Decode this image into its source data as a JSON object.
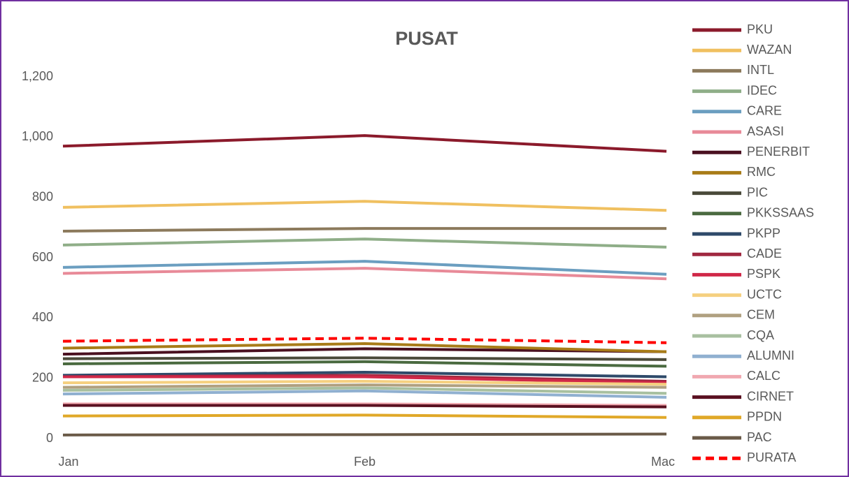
{
  "chart_data": {
    "type": "line",
    "title": "PUSAT",
    "categories": [
      "Jan",
      "Feb",
      "Mac"
    ],
    "ylim": [
      0,
      1200
    ],
    "yticks": [
      0,
      200,
      400,
      600,
      800,
      {
        "value": 1000,
        "label": "1,000"
      },
      {
        "value": 1200,
        "label": "1,200"
      }
    ],
    "grid": false,
    "legend": "right",
    "series": [
      {
        "name": "PKU",
        "color": "#8b1a2b",
        "values": [
          970,
          1005,
          953
        ]
      },
      {
        "name": "WAZAN",
        "color": "#f0c060",
        "values": [
          767,
          787,
          757
        ]
      },
      {
        "name": "INTL",
        "color": "#8c7a5c",
        "values": [
          688,
          697,
          697
        ]
      },
      {
        "name": "IDEC",
        "color": "#8fae88",
        "values": [
          642,
          662,
          635
        ]
      },
      {
        "name": "CARE",
        "color": "#6b9ec0",
        "values": [
          568,
          588,
          545
        ]
      },
      {
        "name": "ASASI",
        "color": "#e88a98",
        "values": [
          548,
          565,
          530
        ]
      },
      {
        "name": "PENERBIT",
        "color": "#4a1020",
        "values": [
          280,
          298,
          288
        ]
      },
      {
        "name": "RMC",
        "color": "#a87c18",
        "values": [
          300,
          315,
          288
        ]
      },
      {
        "name": "PIC",
        "color": "#4a4a3a",
        "values": [
          265,
          268,
          262
        ]
      },
      {
        "name": "PKKSSAAS",
        "color": "#4a6a40",
        "values": [
          248,
          255,
          240
        ]
      },
      {
        "name": "PKPP",
        "color": "#2e4a6a",
        "values": [
          210,
          220,
          205
        ]
      },
      {
        "name": "CADE",
        "color": "#a02840",
        "values": [
          205,
          210,
          190
        ]
      },
      {
        "name": "PSPK",
        "color": "#d02848",
        "values": [
          205,
          205,
          185
        ]
      },
      {
        "name": "UCTC",
        "color": "#f5d080",
        "values": [
          185,
          190,
          180
        ]
      },
      {
        "name": "CEM",
        "color": "#b0a080",
        "values": [
          170,
          178,
          170
        ]
      },
      {
        "name": "CQA",
        "color": "#a8c0a0",
        "values": [
          160,
          168,
          150
        ]
      },
      {
        "name": "ALUMNI",
        "color": "#90b0d0",
        "values": [
          148,
          158,
          137
        ]
      },
      {
        "name": "CALC",
        "color": "#f0a8b0",
        "values": [
          115,
          115,
          110
        ]
      },
      {
        "name": "CIRNET",
        "color": "#5a1020",
        "values": [
          110,
          110,
          105
        ]
      },
      {
        "name": "PPDN",
        "color": "#e0a828",
        "values": [
          75,
          78,
          70
        ]
      },
      {
        "name": "PAC",
        "color": "#6a5a48",
        "values": [
          12,
          13,
          15
        ]
      },
      {
        "name": "PURATA",
        "color": "#ff0000",
        "dashed": true,
        "values": [
          323,
          333,
          318
        ]
      }
    ]
  }
}
